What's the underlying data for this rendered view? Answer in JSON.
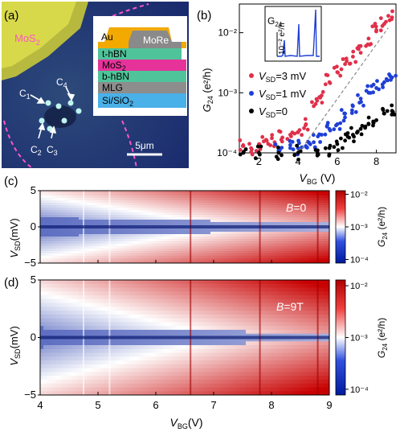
{
  "panel_a": {
    "label": "(a)",
    "material_label": "MoS",
    "material_sub": "2",
    "contacts": [
      {
        "name": "C",
        "sub": "1"
      },
      {
        "name": "C",
        "sub": "4"
      },
      {
        "name": "C",
        "sub": "2"
      },
      {
        "name": "C",
        "sub": "3"
      }
    ],
    "scale_bar": "5μm",
    "stack": [
      {
        "name": "Au",
        "color": "#f2a900"
      },
      {
        "name": "MoRe",
        "color": "#8a8a8a"
      },
      {
        "name": "t-hBN",
        "color": "#4fc49a"
      },
      {
        "name": "MoS",
        "sub": "2",
        "color": "#e6339a"
      },
      {
        "name": "b-hBN",
        "color": "#4fc49a"
      },
      {
        "name": "MLG",
        "color": "#8d8d8d"
      },
      {
        "name": "Si/SiO",
        "sub": "2",
        "color": "#4ab0e8"
      }
    ]
  },
  "panel_b": {
    "label": "(b)",
    "ylabel": "G",
    "ylabel_sub": "24",
    "ylabel_unit": " (e²/h)",
    "xlabel": "V",
    "xlabel_sub": "BG",
    "xlabel_unit": " (V)",
    "inset_ylabel": "G",
    "inset_ylabel_sub": "24",
    "inset_scale": "10⁻² e²/h",
    "legend": [
      {
        "v": "V",
        "sub": "SD",
        "text": "=3 mV",
        "color": "#e0304a"
      },
      {
        "v": "V",
        "sub": "SD",
        "text": "=1 mV",
        "color": "#1f3fd6"
      },
      {
        "v": "V",
        "sub": "SD",
        "text": "=0",
        "color": "#000000"
      }
    ]
  },
  "panel_c": {
    "label": "(c)",
    "field": "B",
    "field_value": "=0"
  },
  "panel_d": {
    "label": "(d)",
    "field": "B",
    "field_value": "=9T"
  },
  "maps": {
    "ylabel": "V",
    "ylabel_sub": "SD",
    "ylabel_unit": "(mV)",
    "xlabel": "V",
    "xlabel_sub": "BG",
    "xlabel_unit": "(V)",
    "colorbar_label": "G",
    "colorbar_sub": "24",
    "colorbar_unit": " (e²/h)",
    "colors": {
      "low": "#001a9e",
      "mid": "#ffffff",
      "high": "#c80000"
    }
  },
  "chart_data": [
    {
      "type": "scatter",
      "xlim": [
        1,
        9
      ],
      "ylim": [
        0.0001,
        0.03
      ],
      "yscale": "log",
      "x_ticks": [
        2,
        4,
        6,
        8
      ],
      "y_ticks": [
        "10⁻⁴",
        "10⁻³",
        "10⁻²"
      ],
      "legend_position": "center-left",
      "series": [
        {
          "color": "#e0304a",
          "x": [
            1.2,
            1.6,
            2.0,
            2.4,
            2.8,
            3.2,
            3.6,
            4.0,
            4.4,
            4.8,
            5.2,
            5.6,
            6.0,
            6.4,
            6.8,
            7.2,
            7.6,
            8.0,
            8.4,
            8.8
          ],
          "y": [
            0.00013,
            0.00012,
            0.00014,
            0.00016,
            0.00015,
            0.00018,
            0.0002,
            0.00022,
            0.0003,
            0.0006,
            0.0009,
            0.0015,
            0.0022,
            0.003,
            0.004,
            0.006,
            0.008,
            0.011,
            0.014,
            0.018
          ]
        },
        {
          "color": "#1f3fd6",
          "x": [
            3.0,
            3.6,
            4.0,
            4.4,
            4.8,
            5.2,
            5.6,
            6.0,
            6.4,
            6.8,
            7.2,
            7.6,
            8.0,
            8.4,
            8.8
          ],
          "y": [
            0.00011,
            0.00012,
            0.00012,
            0.00013,
            0.00015,
            0.0002,
            0.00025,
            0.0003,
            0.00045,
            0.0006,
            0.0008,
            0.001,
            0.0012,
            0.0015,
            0.0018
          ]
        },
        {
          "color": "#000000",
          "x": [
            1.2,
            2.0,
            3.0,
            4.0,
            5.0,
            5.6,
            6.0,
            6.4,
            6.8,
            7.2,
            7.6,
            8.0,
            8.4,
            8.8
          ],
          "y": [
            0.0001,
            0.0001,
            0.0001,
            0.0001,
            0.00011,
            0.00012,
            0.00014,
            0.00016,
            0.0002,
            0.00025,
            0.0003,
            0.00035,
            0.00045,
            0.0005
          ]
        }
      ]
    },
    {
      "type": "heatmap",
      "xlim": [
        4,
        9
      ],
      "ylim": [
        -5,
        5
      ],
      "x_ticks": [
        4,
        5,
        6,
        7,
        8,
        9
      ],
      "y_ticks": [
        -5,
        0,
        5
      ],
      "color_range": [
        "10⁻⁴",
        "10⁻³",
        "10⁻²"
      ]
    }
  ]
}
